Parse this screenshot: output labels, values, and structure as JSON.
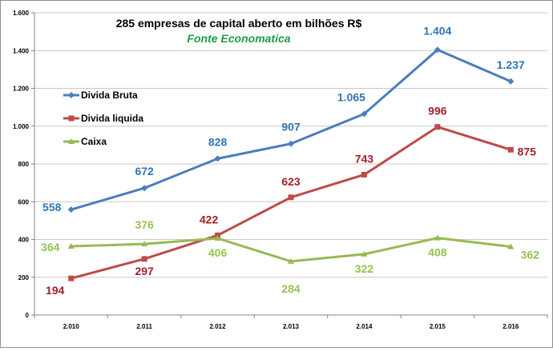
{
  "chart_data": {
    "type": "line",
    "title": "285 empresas de capital aberto  em  bilhões R$",
    "subtitle": "Fonte Economatica",
    "subtitle_color": "#1e9a48",
    "categories": [
      "2.010",
      "2.011",
      "2.012",
      "2.013",
      "2.014",
      "2.015",
      "2.016"
    ],
    "ylim": [
      0,
      1600
    ],
    "y_ticks": [
      {
        "value": 0,
        "label": "0"
      },
      {
        "value": 200,
        "label": "200"
      },
      {
        "value": 400,
        "label": "400"
      },
      {
        "value": 600,
        "label": "600"
      },
      {
        "value": 800,
        "label": "800"
      },
      {
        "value": 1000,
        "label": "1.000"
      },
      {
        "value": 1200,
        "label": "1.200"
      },
      {
        "value": 1400,
        "label": "1.400"
      },
      {
        "value": 1600,
        "label": "1.600"
      }
    ],
    "grid": true,
    "legend_position": "left",
    "series": [
      {
        "name": "Divida Bruta",
        "color": "#4a7ebb",
        "label_color": "#2e75b6",
        "marker": "diamond",
        "values": [
          558,
          672,
          828,
          907,
          1065,
          1404,
          1237
        ],
        "labels": [
          "558",
          "672",
          "828",
          "907",
          "1.065",
          "1.404",
          "1.237"
        ]
      },
      {
        "name": "Divida liquida",
        "color": "#be4b48",
        "label_color": "#a3202a",
        "marker": "square",
        "values": [
          194,
          297,
          422,
          623,
          743,
          996,
          875
        ],
        "labels": [
          "194",
          "297",
          "422",
          "623",
          "743",
          "996",
          "875"
        ]
      },
      {
        "name": "Caixa",
        "color": "#98b954",
        "label_color": "#92c353",
        "marker": "triangle",
        "values": [
          364,
          376,
          406,
          284,
          322,
          408,
          362
        ],
        "labels": [
          "364",
          "376",
          "406",
          "284",
          "322",
          "408",
          "362"
        ]
      }
    ]
  }
}
